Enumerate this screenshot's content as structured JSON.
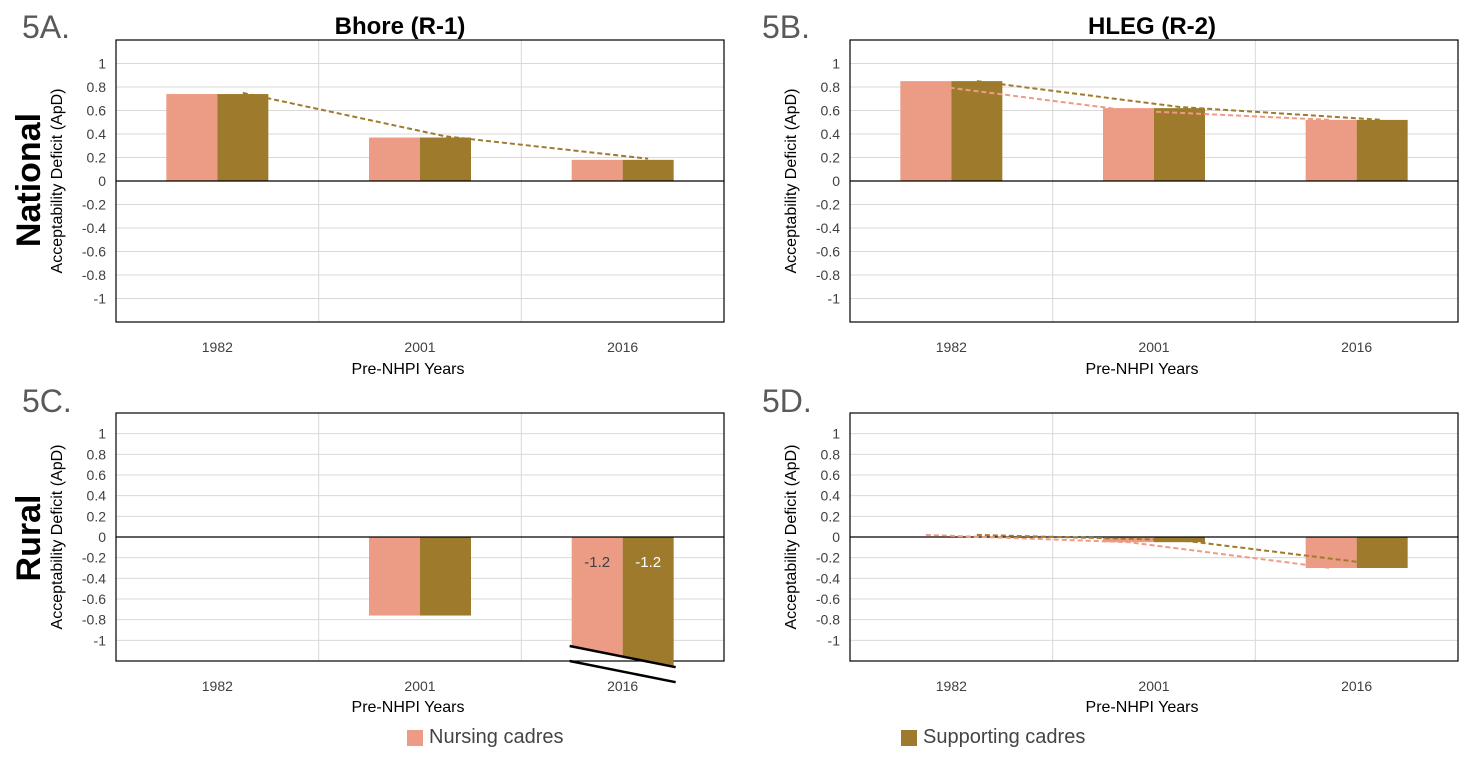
{
  "colors": {
    "nursing": "#EC9C84",
    "supporting": "#9E7B2C",
    "trend_nursing": "#F09A86",
    "trend_supporting": "#9E7B2C",
    "grid": "#D9D9D9",
    "axis": "#000000",
    "text": "#404040"
  },
  "row_labels": {
    "top": "National",
    "bottom": "Rural"
  },
  "legend": [
    {
      "label": "Nursing cadres",
      "color_key": "nursing"
    },
    {
      "label": "Supporting cadres",
      "color_key": "supporting"
    }
  ],
  "chart_data": [
    {
      "panel_label": "5A.",
      "title": "Bhore (R-1)",
      "type": "bar",
      "categories": [
        "1982",
        "2001",
        "2016"
      ],
      "series": [
        {
          "name": "Nursing cadres",
          "values": [
            0.74,
            0.37,
            0.18
          ]
        },
        {
          "name": "Supporting cadres",
          "values": [
            0.74,
            0.37,
            0.18
          ]
        }
      ],
      "trendlines": [
        {
          "series": "Supporting cadres",
          "values": [
            0.75,
            0.38,
            0.19
          ]
        }
      ],
      "ylim": [
        -1.2,
        1.2
      ],
      "yticks": [
        1,
        0.8,
        0.6,
        0.4,
        0.2,
        0,
        -0.2,
        -0.4,
        -0.6,
        -0.8,
        -1
      ],
      "xlabel": "Pre-NHPI Years",
      "ylabel": "Acceptability Deficit (ApD)",
      "grid": true,
      "data_labels": []
    },
    {
      "panel_label": "5B.",
      "title": "HLEG (R-2)",
      "type": "bar",
      "categories": [
        "1982",
        "2001",
        "2016"
      ],
      "series": [
        {
          "name": "Nursing cadres",
          "values": [
            0.85,
            0.62,
            0.52
          ]
        },
        {
          "name": "Supporting cadres",
          "values": [
            0.85,
            0.62,
            0.52
          ]
        }
      ],
      "trendlines": [
        {
          "series": "Nursing cadres",
          "values": [
            0.82,
            0.6,
            0.52
          ]
        },
        {
          "series": "Supporting cadres",
          "values": [
            0.85,
            0.63,
            0.52
          ]
        }
      ],
      "ylim": [
        -1.2,
        1.2
      ],
      "yticks": [
        1,
        0.8,
        0.6,
        0.4,
        0.2,
        0,
        -0.2,
        -0.4,
        -0.6,
        -0.8,
        -1
      ],
      "xlabel": "Pre-NHPI Years",
      "ylabel": "Acceptability Deficit (ApD)",
      "grid": true,
      "data_labels": []
    },
    {
      "panel_label": "5C.",
      "title": "",
      "type": "bar",
      "categories": [
        "1982",
        "2001",
        "2016"
      ],
      "series": [
        {
          "name": "Nursing cadres",
          "values": [
            0,
            -0.76,
            -1.2
          ]
        },
        {
          "name": "Supporting cadres",
          "values": [
            0,
            -0.76,
            -1.2
          ]
        }
      ],
      "trendlines": [],
      "ylim": [
        -1.2,
        1.2
      ],
      "yticks": [
        1,
        0.8,
        0.6,
        0.4,
        0.2,
        0,
        -0.2,
        -0.4,
        -0.6,
        -0.8,
        -1
      ],
      "xlabel": "Pre-NHPI Years",
      "ylabel": "Acceptability Deficit (ApD)",
      "grid": true,
      "axis_break_category": "2016",
      "data_labels": [
        {
          "category": "2016",
          "series": "Nursing cadres",
          "text": "-1.2"
        },
        {
          "category": "2016",
          "series": "Supporting cadres",
          "text": "-1.2"
        }
      ]
    },
    {
      "panel_label": "5D.",
      "title": "",
      "type": "bar",
      "categories": [
        "1982",
        "2001",
        "2016"
      ],
      "series": [
        {
          "name": "Nursing cadres",
          "values": [
            0,
            -0.05,
            -0.3
          ]
        },
        {
          "name": "Supporting cadres",
          "values": [
            0,
            -0.05,
            -0.3
          ]
        }
      ],
      "trendlines": [
        {
          "series": "Nursing cadres",
          "values": [
            0.02,
            -0.05,
            -0.3
          ]
        },
        {
          "series": "Supporting cadres",
          "values": [
            0.02,
            -0.03,
            -0.27
          ]
        }
      ],
      "ylim": [
        -1.2,
        1.2
      ],
      "yticks": [
        1,
        0.8,
        0.6,
        0.4,
        0.2,
        0,
        -0.2,
        -0.4,
        -0.6,
        -0.8,
        -1
      ],
      "xlabel": "Pre-NHPI Years",
      "ylabel": "Acceptability Deficit (ApD)",
      "grid": true,
      "data_labels": []
    }
  ]
}
